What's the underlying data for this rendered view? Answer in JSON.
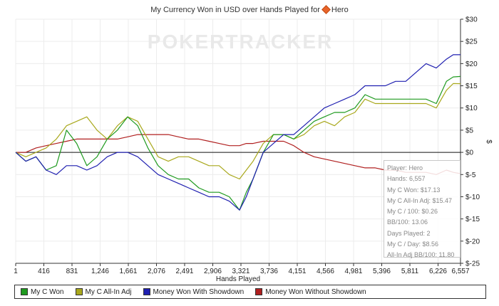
{
  "title": {
    "prefix": "My Currency Won in USD over Hands Played for",
    "player": "Hero"
  },
  "watermark": "POKERTRACKER",
  "stats": [
    "Player: Hero",
    "Hands: 6,557",
    "My C Won: $17.13",
    "My C All-In Adj: $15.47",
    "My C / 100: $0.26",
    "BB/100: 13.06",
    "Days Played: 2",
    "My C / Day: $8.56",
    "All-In Adj BB/100: 11.80"
  ],
  "colors": {
    "my_c_won": "#1f9a1f",
    "my_c_allin_adj": "#a9a81c",
    "showdown": "#1f1fb0",
    "non_showdown": "#b01f1f"
  },
  "chart_data": {
    "type": "line",
    "xlabel": "Hands Played",
    "ylabel": "$",
    "xlim": [
      1,
      6557
    ],
    "ylim": [
      -25,
      30
    ],
    "x_ticks": [
      1,
      416,
      831,
      1246,
      1661,
      2076,
      2491,
      2906,
      3321,
      3736,
      4151,
      4566,
      4981,
      5396,
      5811,
      6226,
      6557
    ],
    "x_tick_labels": [
      "1",
      "416",
      "831",
      "1,246",
      "1,661",
      "2,076",
      "2,491",
      "2,906",
      "3,321",
      "3,736",
      "4,151",
      "4,566",
      "4,981",
      "5,396",
      "5,811",
      "6,226",
      "6,557"
    ],
    "y_ticks": [
      30,
      25,
      20,
      15,
      10,
      5,
      0,
      -5,
      -10,
      -15,
      -20,
      -25
    ],
    "y_tick_labels": [
      "$30",
      "$25",
      "$20",
      "$15",
      "$10",
      "$5",
      "$0",
      "$-5",
      "$-10",
      "$-15",
      "$-20",
      "$-25"
    ],
    "grid": true,
    "legend_position": "bottom",
    "series": [
      {
        "name": "My C Won",
        "x": [
          1,
          150,
          300,
          450,
          600,
          750,
          900,
          1050,
          1200,
          1350,
          1500,
          1650,
          1800,
          1950,
          2100,
          2250,
          2400,
          2550,
          2700,
          2850,
          3000,
          3150,
          3300,
          3400,
          3500,
          3650,
          3800,
          3950,
          4100,
          4250,
          4400,
          4550,
          4700,
          4850,
          5000,
          5150,
          5300,
          5450,
          5600,
          5750,
          5900,
          6050,
          6200,
          6350,
          6450,
          6557
        ],
        "y": [
          0,
          -2,
          -1,
          -4,
          -3,
          5,
          2,
          -3,
          -1,
          3,
          5,
          8,
          6,
          1,
          -3,
          -5,
          -6,
          -6,
          -8,
          -9,
          -9,
          -10,
          -13,
          -9,
          -6,
          0,
          4,
          4,
          3,
          5,
          7,
          8,
          9,
          9,
          10,
          13,
          12,
          12,
          12,
          12,
          12,
          12,
          11,
          16,
          17,
          17.1
        ]
      },
      {
        "name": "My C All-In Adj",
        "x": [
          1,
          150,
          300,
          450,
          600,
          750,
          900,
          1050,
          1200,
          1350,
          1500,
          1650,
          1800,
          1950,
          2100,
          2250,
          2400,
          2550,
          2700,
          2850,
          3000,
          3150,
          3300,
          3400,
          3500,
          3650,
          3800,
          3950,
          4100,
          4250,
          4400,
          4550,
          4700,
          4850,
          5000,
          5150,
          5300,
          5450,
          5600,
          5750,
          5900,
          6050,
          6200,
          6350,
          6450,
          6557
        ],
        "y": [
          0,
          -1,
          0,
          1,
          3,
          6,
          7,
          8,
          5,
          3,
          6,
          8,
          7,
          3,
          -1,
          -2,
          -1,
          -1,
          -2,
          -3,
          -3,
          -5,
          -6,
          -4,
          -2,
          2,
          4,
          4,
          3,
          4,
          6,
          7,
          6,
          8,
          9,
          12,
          11,
          11,
          11,
          11,
          11,
          11,
          10,
          14,
          15.5,
          15.47
        ]
      },
      {
        "name": "Money Won With Showdown",
        "x": [
          1,
          150,
          300,
          450,
          600,
          750,
          900,
          1050,
          1200,
          1350,
          1500,
          1650,
          1800,
          1950,
          2100,
          2250,
          2400,
          2550,
          2700,
          2850,
          3000,
          3150,
          3300,
          3400,
          3500,
          3650,
          3800,
          3950,
          4100,
          4250,
          4400,
          4550,
          4700,
          4850,
          5000,
          5150,
          5300,
          5450,
          5600,
          5750,
          5900,
          6050,
          6200,
          6350,
          6450,
          6557
        ],
        "y": [
          0,
          -2,
          -1,
          -4,
          -5,
          -3,
          -3,
          -4,
          -3,
          -1,
          0,
          0,
          -1,
          -3,
          -5,
          -6,
          -7,
          -8,
          -9,
          -10,
          -10,
          -11,
          -13,
          -10,
          -6,
          0,
          2,
          4,
          4,
          6,
          8,
          10,
          11,
          12,
          13,
          15,
          15,
          15,
          16,
          16,
          18,
          20,
          19,
          21,
          22,
          22
        ]
      },
      {
        "name": "Money Won Without Showdown",
        "x": [
          1,
          150,
          300,
          450,
          600,
          750,
          900,
          1050,
          1200,
          1350,
          1500,
          1650,
          1800,
          1950,
          2100,
          2250,
          2400,
          2550,
          2700,
          2850,
          3000,
          3150,
          3300,
          3400,
          3500,
          3650,
          3800,
          3950,
          4100,
          4250,
          4400,
          4550,
          4700,
          4850,
          5000,
          5150,
          5300,
          5450,
          5600,
          5750,
          5900,
          6050,
          6200,
          6350,
          6450,
          6557
        ],
        "y": [
          0,
          0,
          1,
          1.5,
          2,
          2.5,
          3,
          3,
          3,
          3,
          3,
          3.5,
          4,
          4,
          4,
          4,
          3.5,
          3,
          3,
          2.5,
          2,
          1.5,
          1.5,
          2,
          2,
          2.5,
          2.5,
          2.5,
          1.5,
          0,
          -1,
          -1.5,
          -2,
          -2.5,
          -3,
          -3.5,
          -3.5,
          -4,
          -4,
          -4.5,
          -4.5,
          -4.5,
          -5,
          -4,
          -4.5,
          -4.8
        ]
      }
    ]
  }
}
